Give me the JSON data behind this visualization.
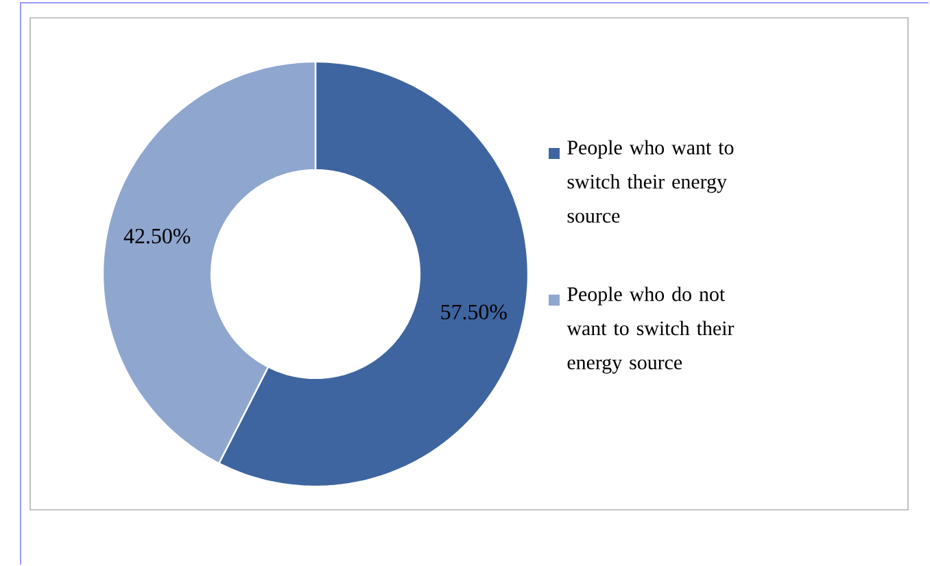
{
  "chart_data": {
    "type": "donut",
    "categories": [
      "People who want to switch their energy source",
      "People who do not want to switch their energy source"
    ],
    "values": [
      57.5,
      42.5
    ],
    "colors": [
      "#3e65a0",
      "#8fa6cf"
    ],
    "value_labels": [
      "57.50%",
      "42.50%"
    ],
    "legend": "right"
  }
}
